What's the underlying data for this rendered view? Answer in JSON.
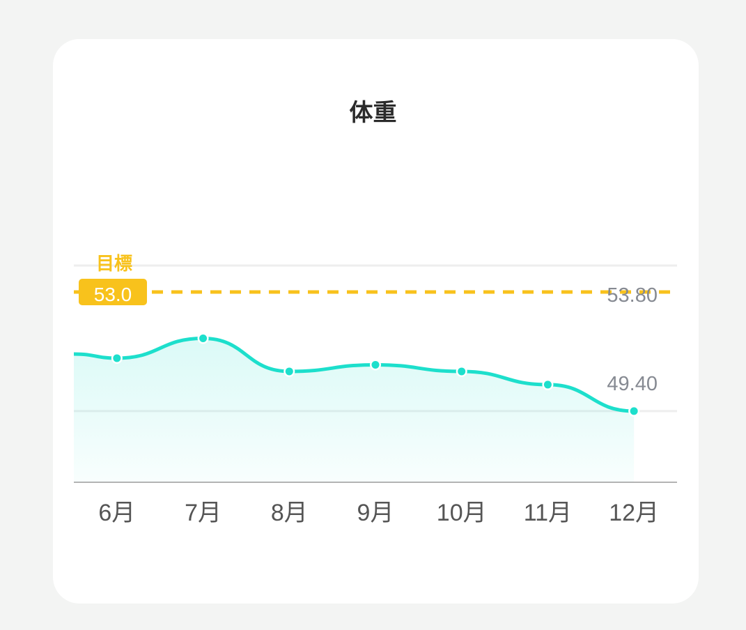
{
  "chart_data": {
    "type": "area",
    "title": "体重",
    "categories": [
      "6月",
      "7月",
      "8月",
      "9月",
      "10月",
      "11月",
      "12月"
    ],
    "values": [
      51.0,
      51.6,
      50.6,
      50.8,
      50.6,
      50.2,
      49.4
    ],
    "ylim": [
      47.25,
      53.8
    ],
    "gridlines": [
      53.8,
      49.4
    ],
    "gridline_labels": [
      "53.80",
      "49.40"
    ],
    "target": {
      "label": "目標",
      "value": 53.0,
      "value_label": "53.0"
    },
    "grid": true,
    "colors": {
      "line": "#1ddfcc",
      "target": "#f8c21c",
      "grid": "#eeeeee",
      "axis": "#9a9a9a",
      "label": "#868a92",
      "tick": "#555555"
    }
  }
}
